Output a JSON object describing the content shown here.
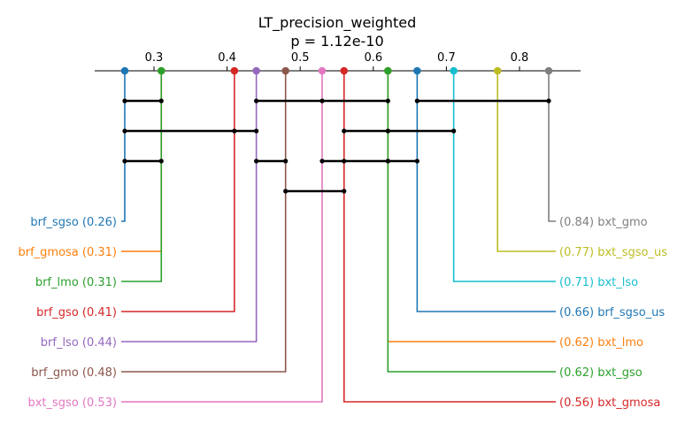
{
  "chart_data": {
    "type": "critical-difference-diagram",
    "title": "LT_precision_weighted",
    "subtitle": "p = 1.12e-10",
    "axis": {
      "min": 0.2,
      "max": 0.9,
      "ticks": [
        0.3,
        0.4,
        0.5,
        0.6,
        0.7,
        0.8
      ],
      "tick_labels": [
        "0.3",
        "0.4",
        "0.5",
        "0.6",
        "0.7",
        "0.8"
      ]
    },
    "left_methods": [
      {
        "name": "brf_sgso",
        "value": 0.26,
        "label": "brf_sgso (0.26)",
        "color": "#1f77b4"
      },
      {
        "name": "brf_gmosa",
        "value": 0.31,
        "label": "brf_gmosa (0.31)",
        "color": "#ff7f0e"
      },
      {
        "name": "brf_lmo",
        "value": 0.31,
        "label": "brf_lmo (0.31)",
        "color": "#2ca02c"
      },
      {
        "name": "brf_gso",
        "value": 0.41,
        "label": "brf_gso (0.41)",
        "color": "#d62728"
      },
      {
        "name": "brf_lso",
        "value": 0.44,
        "label": "brf_lso (0.44)",
        "color": "#9467bd"
      },
      {
        "name": "brf_gmo",
        "value": 0.48,
        "label": "brf_gmo (0.48)",
        "color": "#8c564b"
      },
      {
        "name": "bxt_sgso",
        "value": 0.53,
        "label": "bxt_sgso (0.53)",
        "color": "#e377c2"
      }
    ],
    "right_methods": [
      {
        "name": "bxt_gmo",
        "value": 0.84,
        "label": "(0.84) bxt_gmo",
        "color": "#7f7f7f"
      },
      {
        "name": "bxt_sgso_us",
        "value": 0.77,
        "label": "(0.77) bxt_sgso_us",
        "color": "#bcbd22"
      },
      {
        "name": "bxt_lso",
        "value": 0.71,
        "label": "(0.71) bxt_lso",
        "color": "#17becf"
      },
      {
        "name": "brf_sgso_us",
        "value": 0.66,
        "label": "(0.66) brf_sgso_us",
        "color": "#1f77b4"
      },
      {
        "name": "bxt_lmo",
        "value": 0.62,
        "label": "(0.62) bxt_lmo",
        "color": "#ff7f0e"
      },
      {
        "name": "bxt_gso",
        "value": 0.62,
        "label": "(0.62) bxt_gso",
        "color": "#2ca02c"
      },
      {
        "name": "bxt_gmosa",
        "value": 0.56,
        "label": "(0.56) bxt_gmosa",
        "color": "#d62728"
      }
    ],
    "cliques": [
      {
        "row": 0,
        "points": [
          0.26,
          0.31
        ]
      },
      {
        "row": 0,
        "points": [
          0.44,
          0.53,
          0.62
        ]
      },
      {
        "row": 0,
        "points": [
          0.66,
          0.84
        ]
      },
      {
        "row": 1,
        "points": [
          0.26,
          0.41,
          0.44
        ]
      },
      {
        "row": 1,
        "points": [
          0.56,
          0.62,
          0.62,
          0.71
        ]
      },
      {
        "row": 2,
        "points": [
          0.26,
          0.31
        ]
      },
      {
        "row": 2,
        "points": [
          0.44,
          0.48
        ]
      },
      {
        "row": 2,
        "points": [
          0.53,
          0.56,
          0.62,
          0.62,
          0.66
        ]
      },
      {
        "row": 3,
        "points": [
          0.48,
          0.56
        ]
      }
    ]
  }
}
